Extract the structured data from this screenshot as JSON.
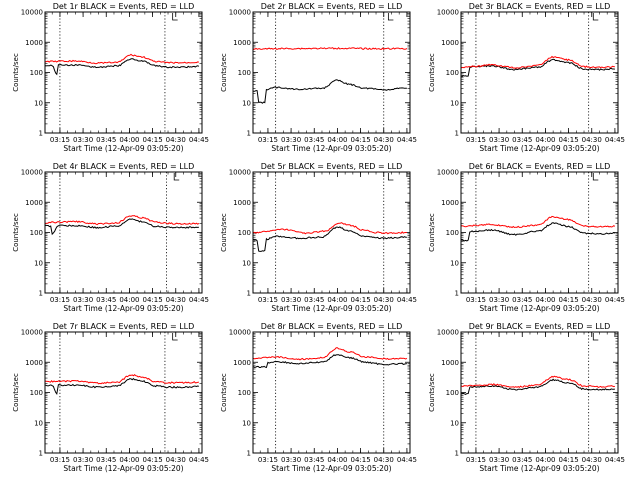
{
  "figure": {
    "background": "#ffffff",
    "colors": {
      "axes": "#000000",
      "events": "#000000",
      "lld": "#ff0000"
    }
  },
  "chart_data": [
    {
      "type": "line",
      "title": "Det 1r BLACK = Events, RED = LLD",
      "xlabel": "Start Time (12-Apr-09 03:05:20)",
      "ylabel": "Counts/sec",
      "xlim": [
        "03:05:20",
        "04:47:00"
      ],
      "ylim": [
        1,
        10000
      ],
      "yscale": "log",
      "xticks": [
        "03:15",
        "03:30",
        "03:45",
        "04:00",
        "04:15",
        "04:30",
        "04:45"
      ],
      "yticks": [
        "1",
        "10",
        "100",
        "1000",
        "10000"
      ],
      "vlines": [
        "03:15",
        "04:23"
      ],
      "marker": "04:28",
      "series": [
        {
          "name": "",
          "color": "#000000",
          "x": [
            "03:05",
            "03:10",
            "03:13",
            "03:14",
            "03:25",
            "03:40",
            "03:52",
            "04:01",
            "04:08",
            "04:17",
            "04:25",
            "04:35",
            "04:45"
          ],
          "y": [
            170,
            170,
            90,
            175,
            175,
            150,
            165,
            280,
            240,
            165,
            150,
            150,
            160
          ]
        },
        {
          "name": "",
          "color": "#ff0000",
          "x": [
            "03:05",
            "03:15",
            "03:25",
            "03:40",
            "03:52",
            "04:01",
            "04:08",
            "04:17",
            "04:25",
            "04:35",
            "04:45"
          ],
          "y": [
            230,
            235,
            240,
            205,
            215,
            380,
            330,
            230,
            210,
            210,
            220
          ]
        }
      ]
    },
    {
      "type": "line",
      "title": "Det 2r BLACK = Events, RED = LLD",
      "xlabel": "Start Time (12-Apr-09 03:05:20)",
      "ylabel": "Counts/sec",
      "xlim": [
        "03:05:20",
        "04:47:00"
      ],
      "ylim": [
        1,
        10000
      ],
      "yscale": "log",
      "xticks": [
        "03:15",
        "03:30",
        "03:45",
        "04:00",
        "04:15",
        "04:30",
        "04:45"
      ],
      "yticks": [
        "1",
        "10",
        "100",
        "1000",
        "10000"
      ],
      "vlines": [
        "03:20",
        "04:30"
      ],
      "marker": "04:33",
      "series": [
        {
          "name": "",
          "color": "#000000",
          "x": [
            "03:05",
            "03:08",
            "03:09",
            "03:13",
            "03:14",
            "03:20",
            "03:35",
            "03:50",
            "04:00",
            "04:08",
            "04:18",
            "04:30",
            "04:45"
          ],
          "y": [
            25,
            25,
            10,
            10,
            28,
            32,
            28,
            30,
            55,
            40,
            30,
            27,
            30
          ]
        },
        {
          "name": "",
          "color": "#ff0000",
          "x": [
            "03:05",
            "03:30",
            "04:00",
            "04:30",
            "04:45"
          ],
          "y": [
            600,
            620,
            630,
            610,
            620
          ]
        }
      ]
    },
    {
      "type": "line",
      "title": "Det 3r BLACK = Events, RED = LLD",
      "xlabel": "Start Time (12-Apr-09 03:05:20)",
      "ylabel": "Counts/sec",
      "xlim": [
        "03:05:20",
        "04:47:00"
      ],
      "ylim": [
        1,
        10000
      ],
      "yscale": "log",
      "xticks": [
        "03:15",
        "03:30",
        "03:45",
        "04:00",
        "04:15",
        "04:30",
        "04:45"
      ],
      "yticks": [
        "1",
        "10",
        "100",
        "1000",
        "10000"
      ],
      "vlines": [
        "03:15",
        "04:28"
      ],
      "marker": "04:31",
      "series": [
        {
          "name": "",
          "color": "#000000",
          "x": [
            "03:05",
            "03:10",
            "03:11",
            "03:14",
            "03:25",
            "03:40",
            "03:55",
            "04:05",
            "04:15",
            "04:25",
            "04:35",
            "04:45"
          ],
          "y": [
            75,
            75,
            150,
            155,
            165,
            125,
            150,
            260,
            210,
            130,
            125,
            130
          ]
        },
        {
          "name": "",
          "color": "#ff0000",
          "x": [
            "03:05",
            "03:15",
            "03:25",
            "03:40",
            "03:55",
            "04:05",
            "04:15",
            "04:25",
            "04:35",
            "04:45"
          ],
          "y": [
            150,
            160,
            180,
            145,
            170,
            330,
            260,
            155,
            150,
            155
          ]
        }
      ]
    },
    {
      "type": "line",
      "title": "Det 4r BLACK = Events, RED = LLD",
      "xlabel": "Start Time (12-Apr-09 03:05:20)",
      "ylabel": "Counts/sec",
      "xlim": [
        "03:05:20",
        "04:47:00"
      ],
      "ylim": [
        1,
        10000
      ],
      "yscale": "log",
      "xticks": [
        "03:15",
        "03:30",
        "03:45",
        "04:00",
        "04:15",
        "04:30",
        "04:45"
      ],
      "yticks": [
        "1",
        "10",
        "100",
        "1000",
        "10000"
      ],
      "vlines": [
        "03:15",
        "04:24"
      ],
      "marker": "04:29",
      "series": [
        {
          "name": "",
          "color": "#000000",
          "x": [
            "03:05",
            "03:09",
            "03:10",
            "03:14",
            "03:25",
            "03:40",
            "03:52",
            "04:01",
            "04:08",
            "04:17",
            "04:25",
            "04:35",
            "04:45"
          ],
          "y": [
            165,
            165,
            90,
            170,
            170,
            145,
            165,
            270,
            230,
            160,
            150,
            145,
            150
          ]
        },
        {
          "name": "",
          "color": "#ff0000",
          "x": [
            "03:05",
            "03:15",
            "03:25",
            "03:40",
            "03:52",
            "04:01",
            "04:08",
            "04:17",
            "04:25",
            "04:35",
            "04:45"
          ],
          "y": [
            210,
            220,
            230,
            190,
            210,
            360,
            310,
            220,
            200,
            195,
            200
          ]
        }
      ]
    },
    {
      "type": "line",
      "title": "Det 5r BLACK = Events, RED = LLD",
      "xlabel": "Start Time (12-Apr-09 03:05:20)",
      "ylabel": "Counts/sec",
      "xlim": [
        "03:05:20",
        "04:47:00"
      ],
      "ylim": [
        1,
        10000
      ],
      "yscale": "log",
      "xticks": [
        "03:15",
        "03:30",
        "03:45",
        "04:00",
        "04:15",
        "04:30",
        "04:45"
      ],
      "yticks": [
        "1",
        "10",
        "100",
        "1000",
        "10000"
      ],
      "vlines": [
        "03:20",
        "04:30"
      ],
      "marker": "04:33",
      "series": [
        {
          "name": "",
          "color": "#000000",
          "x": [
            "03:05",
            "03:08",
            "03:09",
            "03:13",
            "03:14",
            "03:20",
            "03:35",
            "03:50",
            "04:00",
            "04:08",
            "04:18",
            "04:30",
            "04:45"
          ],
          "y": [
            55,
            55,
            25,
            25,
            60,
            75,
            65,
            70,
            150,
            110,
            75,
            65,
            70
          ]
        },
        {
          "name": "",
          "color": "#ff0000",
          "x": [
            "03:05",
            "03:15",
            "03:25",
            "03:40",
            "03:52",
            "04:01",
            "04:08",
            "04:17",
            "04:25",
            "04:35",
            "04:45"
          ],
          "y": [
            95,
            110,
            125,
            95,
            110,
            210,
            175,
            120,
            100,
            95,
            100
          ]
        }
      ]
    },
    {
      "type": "line",
      "title": "Det 6r BLACK = Events, RED = LLD",
      "xlabel": "Start Time (12-Apr-09 03:05:20)",
      "ylabel": "Counts/sec",
      "xlim": [
        "03:05:20",
        "04:47:00"
      ],
      "ylim": [
        1,
        10000
      ],
      "yscale": "log",
      "xticks": [
        "03:15",
        "03:30",
        "03:45",
        "04:00",
        "04:15",
        "04:30",
        "04:45"
      ],
      "yticks": [
        "1",
        "10",
        "100",
        "1000",
        "10000"
      ],
      "vlines": [
        "03:15",
        "04:28"
      ],
      "marker": "04:31",
      "series": [
        {
          "name": "",
          "color": "#000000",
          "x": [
            "03:05",
            "03:10",
            "03:11",
            "03:14",
            "03:25",
            "03:40",
            "03:55",
            "04:05",
            "04:15",
            "04:25",
            "04:35",
            "04:45"
          ],
          "y": [
            55,
            55,
            105,
            110,
            120,
            85,
            110,
            200,
            160,
            95,
            90,
            95
          ]
        },
        {
          "name": "",
          "color": "#ff0000",
          "x": [
            "03:05",
            "03:15",
            "03:25",
            "03:40",
            "03:55",
            "04:05",
            "04:15",
            "04:25",
            "04:35",
            "04:45"
          ],
          "y": [
            160,
            170,
            185,
            150,
            175,
            330,
            270,
            165,
            155,
            160
          ]
        }
      ]
    },
    {
      "type": "line",
      "title": "Det 7r BLACK = Events, RED = LLD",
      "xlabel": "Start Time (12-Apr-09 03:05:20)",
      "ylabel": "Counts/sec",
      "xlim": [
        "03:05:20",
        "04:47:00"
      ],
      "ylim": [
        1,
        10000
      ],
      "yscale": "log",
      "xticks": [
        "03:15",
        "03:30",
        "03:45",
        "04:00",
        "04:15",
        "04:30",
        "04:45"
      ],
      "yticks": [
        "1",
        "10",
        "100",
        "1000",
        "10000"
      ],
      "vlines": [
        "03:15",
        "04:23"
      ],
      "marker": "04:28",
      "series": [
        {
          "name": "",
          "color": "#000000",
          "x": [
            "03:05",
            "03:10",
            "03:13",
            "03:14",
            "03:25",
            "03:40",
            "03:52",
            "04:01",
            "04:08",
            "04:17",
            "04:25",
            "04:35",
            "04:45"
          ],
          "y": [
            170,
            170,
            90,
            175,
            175,
            150,
            165,
            280,
            240,
            165,
            150,
            150,
            160
          ]
        },
        {
          "name": "",
          "color": "#ff0000",
          "x": [
            "03:05",
            "03:15",
            "03:25",
            "03:40",
            "03:52",
            "04:01",
            "04:08",
            "04:17",
            "04:25",
            "04:35",
            "04:45"
          ],
          "y": [
            230,
            235,
            240,
            205,
            215,
            380,
            330,
            230,
            210,
            210,
            220
          ]
        }
      ]
    },
    {
      "type": "line",
      "title": "Det 8r BLACK = Events, RED = LLD",
      "xlabel": "Start Time (12-Apr-09 03:05:20)",
      "ylabel": "Counts/sec",
      "xlim": [
        "03:05:20",
        "04:47:00"
      ],
      "ylim": [
        1,
        10000
      ],
      "yscale": "log",
      "xticks": [
        "03:15",
        "03:30",
        "03:45",
        "04:00",
        "04:15",
        "04:30",
        "04:45"
      ],
      "yticks": [
        "1",
        "10",
        "100",
        "1000",
        "10000"
      ],
      "vlines": [
        "03:20",
        "04:30"
      ],
      "marker": "04:33",
      "series": [
        {
          "name": "",
          "color": "#000000",
          "x": [
            "03:05",
            "03:14",
            "03:15",
            "03:20",
            "03:35",
            "03:50",
            "04:00",
            "04:08",
            "04:18",
            "04:30",
            "04:45"
          ],
          "y": [
            700,
            700,
            950,
            1050,
            900,
            1000,
            1800,
            1400,
            1000,
            850,
            900
          ]
        },
        {
          "name": "",
          "color": "#ff0000",
          "x": [
            "03:05",
            "03:20",
            "03:35",
            "03:50",
            "04:00",
            "04:08",
            "04:18",
            "04:30",
            "04:45"
          ],
          "y": [
            1300,
            1500,
            1250,
            1400,
            2900,
            2200,
            1500,
            1300,
            1350
          ]
        }
      ]
    },
    {
      "type": "line",
      "title": "Det 9r BLACK = Events, RED = LLD",
      "xlabel": "Start Time (12-Apr-09 03:05:20)",
      "ylabel": "Counts/sec",
      "xlim": [
        "03:05:20",
        "04:47:00"
      ],
      "ylim": [
        1,
        10000
      ],
      "yscale": "log",
      "xticks": [
        "03:15",
        "03:30",
        "03:45",
        "04:00",
        "04:15",
        "04:30",
        "04:45"
      ],
      "yticks": [
        "1",
        "10",
        "100",
        "1000",
        "10000"
      ],
      "vlines": [
        "03:15",
        "04:28"
      ],
      "marker": "04:31",
      "series": [
        {
          "name": "",
          "color": "#000000",
          "x": [
            "03:05",
            "03:10",
            "03:11",
            "03:14",
            "03:25",
            "03:40",
            "03:55",
            "04:05",
            "04:15",
            "04:25",
            "04:35",
            "04:45"
          ],
          "y": [
            90,
            90,
            150,
            155,
            165,
            125,
            150,
            260,
            210,
            130,
            125,
            130
          ]
        },
        {
          "name": "",
          "color": "#ff0000",
          "x": [
            "03:05",
            "03:15",
            "03:25",
            "03:40",
            "03:55",
            "04:05",
            "04:15",
            "04:25",
            "04:35",
            "04:45"
          ],
          "y": [
            160,
            170,
            185,
            150,
            175,
            330,
            270,
            165,
            155,
            160
          ]
        }
      ]
    }
  ]
}
